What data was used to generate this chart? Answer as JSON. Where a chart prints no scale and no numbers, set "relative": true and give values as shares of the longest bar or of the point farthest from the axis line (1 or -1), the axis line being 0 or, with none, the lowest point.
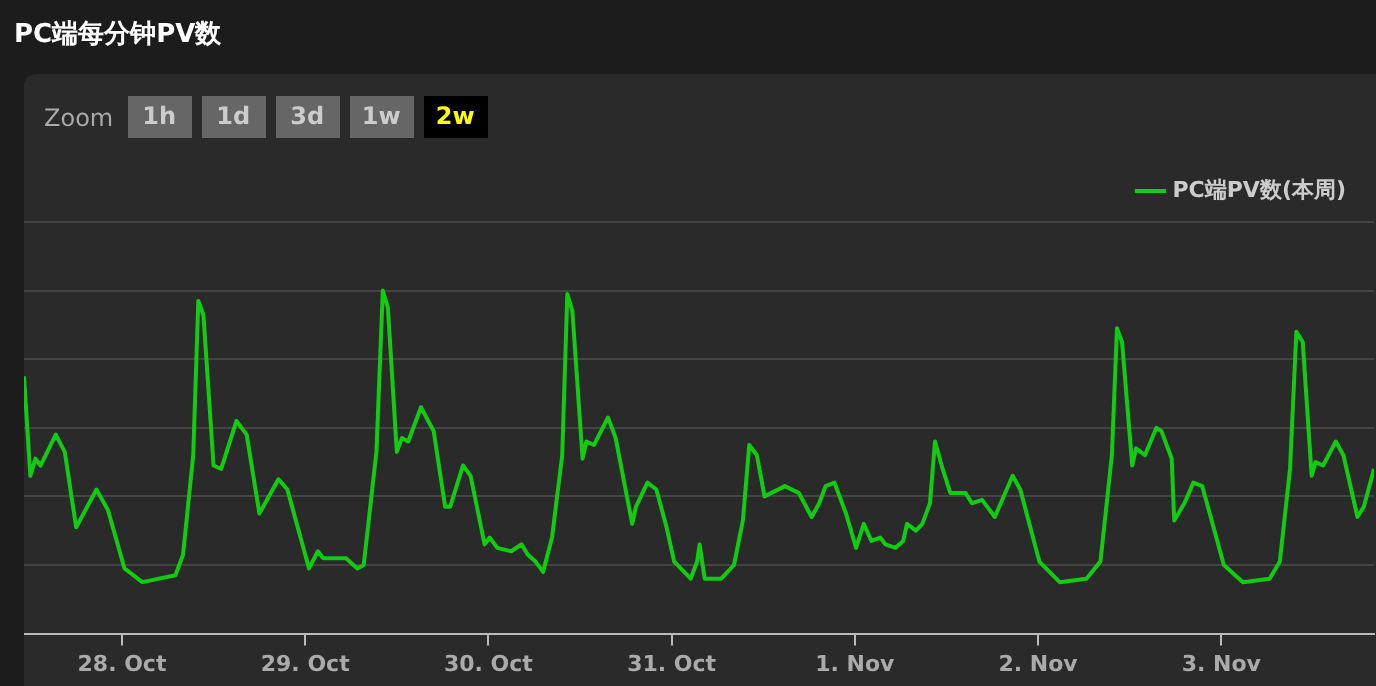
{
  "chart_data": {
    "type": "line",
    "title": "PC端每分钟PV数",
    "relative": true,
    "grid": "y",
    "legend": "top right",
    "marker": "none",
    "annotations": [
      "Zoom",
      "1h",
      "1d",
      "3d",
      "1w",
      "2w"
    ],
    "xlim": [
      "--10-27T11:10",
      "--11-03T20:00"
    ],
    "xticks": [
      {
        "value": "--10-28",
        "label": "28. Oct"
      },
      {
        "value": "--10-29",
        "label": "29. Oct"
      },
      {
        "value": "--10-30",
        "label": "30. Oct"
      },
      {
        "value": "--10-31",
        "label": "31. Oct"
      },
      {
        "value": "--11-01",
        "label": "1. Nov"
      },
      {
        "value": "--11-02",
        "label": "2. Nov"
      },
      {
        "value": "--11-03",
        "label": "3. Nov"
      }
    ],
    "x": [
      "--10-27T11:10",
      "--10-27T12:00",
      "--10-27T12:40",
      "--10-27T13:20",
      "--10-27T15:20",
      "--10-27T16:30",
      "--10-27T18:00",
      "--10-27T20:40",
      "--10-27T22:10",
      "--10-28T00:20",
      "--10-28T02:40",
      "--10-28T07:00",
      "--10-28T08:00",
      "--10-28T09:20",
      "--10-28T10:00",
      "--10-28T10:40",
      "--10-28T12:00",
      "--10-28T13:00",
      "--10-28T15:00",
      "--10-28T16:20",
      "--10-28T18:00",
      "--10-28T20:30",
      "--10-28T21:40",
      "--10-29T00:30",
      "--10-29T01:40",
      "--10-29T02:20",
      "--10-29T05:20",
      "--10-29T06:50",
      "--10-29T07:40",
      "--10-29T09:20",
      "--10-29T10:10",
      "--10-29T10:50",
      "--10-29T12:00",
      "--10-29T12:40",
      "--10-29T13:30",
      "--10-29T15:10",
      "--10-29T16:50",
      "--10-29T18:20",
      "--10-29T19:00",
      "--10-29T20:40",
      "--10-29T21:40",
      "--10-29T23:30",
      "--10-30T00:10",
      "--10-30T01:10",
      "--10-30T03:00",
      "--10-30T04:20",
      "--10-30T05:10",
      "--10-30T06:10",
      "--10-30T07:10",
      "--10-30T08:20",
      "--10-30T09:40",
      "--10-30T10:20",
      "--10-30T11:00",
      "--10-30T12:20",
      "--10-30T12:50",
      "--10-30T13:50",
      "--10-30T15:40",
      "--10-30T16:40",
      "--10-30T18:50",
      "--10-30T19:20",
      "--10-30T20:50",
      "--10-30T22:00",
      "--10-30T23:20",
      "--10-31T00:20",
      "--10-31T02:30",
      "--10-31T03:20",
      "--10-31T03:40",
      "--10-31T04:20",
      "--10-31T06:30",
      "--10-31T08:10",
      "--10-31T09:20",
      "--10-31T10:10",
      "--10-31T11:10",
      "--10-31T12:10",
      "--10-31T14:50",
      "--10-31T16:40",
      "--10-31T18:20",
      "--10-31T19:20",
      "--10-31T20:10",
      "--10-31T21:20",
      "--10-31T22:50",
      "--11-01T00:10",
      "--11-01T01:10",
      "--11-01T02:10",
      "--11-01T03:20",
      "--11-01T04:00",
      "--11-01T05:20",
      "--11-01T06:20",
      "--11-01T06:50",
      "--11-01T08:00",
      "--11-01T08:50",
      "--11-01T09:50",
      "--11-01T10:30",
      "--11-01T11:30",
      "--11-01T12:30",
      "--11-01T14:30",
      "--11-01T15:20",
      "--11-01T16:40",
      "--11-01T18:20",
      "--11-01T20:40",
      "--11-01T21:40",
      "--11-02T00:10",
      "--11-02T02:50",
      "--11-02T06:20",
      "--11-02T08:10",
      "--11-02T09:40",
      "--11-02T10:20",
      "--11-02T11:00",
      "--11-02T12:20",
      "--11-02T12:50",
      "--11-02T14:00",
      "--11-02T15:30",
      "--11-02T16:10",
      "--11-02T17:30",
      "--11-02T17:50",
      "--11-02T19:10",
      "--11-02T20:20",
      "--11-02T21:30",
      "--11-03T00:20",
      "--11-03T02:50",
      "--11-03T06:20",
      "--11-03T07:40",
      "--11-03T09:00",
      "--11-03T09:50",
      "--11-03T10:40",
      "--11-03T11:50",
      "--11-03T12:20",
      "--11-03T13:20",
      "--11-03T15:00",
      "--11-03T16:00",
      "--11-03T17:50",
      "--11-03T18:40",
      "--11-03T20:00"
    ],
    "series": [
      {
        "name": "PC端PV数(本周)",
        "color": "#11cc11",
        "values": [
          0.75,
          0.46,
          0.51,
          0.49,
          0.58,
          0.53,
          0.31,
          0.42,
          0.36,
          0.19,
          0.15,
          0.17,
          0.23,
          0.52,
          0.97,
          0.93,
          0.49,
          0.48,
          0.62,
          0.58,
          0.35,
          0.45,
          0.42,
          0.19,
          0.24,
          0.22,
          0.22,
          0.19,
          0.2,
          0.53,
          1,
          0.95,
          0.53,
          0.57,
          0.56,
          0.66,
          0.59,
          0.37,
          0.37,
          0.49,
          0.46,
          0.26,
          0.28,
          0.25,
          0.24,
          0.26,
          0.23,
          0.21,
          0.18,
          0.28,
          0.52,
          0.99,
          0.94,
          0.51,
          0.56,
          0.55,
          0.63,
          0.57,
          0.32,
          0.37,
          0.44,
          0.42,
          0.31,
          0.21,
          0.16,
          0.21,
          0.26,
          0.16,
          0.16,
          0.2,
          0.33,
          0.55,
          0.52,
          0.4,
          0.43,
          0.41,
          0.34,
          0.38,
          0.43,
          0.44,
          0.35,
          0.25,
          0.32,
          0.27,
          0.28,
          0.26,
          0.25,
          0.27,
          0.32,
          0.3,
          0.32,
          0.38,
          0.56,
          0.48,
          0.41,
          0.41,
          0.38,
          0.39,
          0.34,
          0.46,
          0.42,
          0.21,
          0.15,
          0.16,
          0.21,
          0.52,
          0.89,
          0.85,
          0.49,
          0.54,
          0.52,
          0.6,
          0.59,
          0.51,
          0.33,
          0.38,
          0.44,
          0.43,
          0.2,
          0.15,
          0.16,
          0.21,
          0.48,
          0.88,
          0.85,
          0.46,
          0.5,
          0.49,
          0.56,
          0.52,
          0.34,
          0.37,
          0.48
        ]
      }
    ]
  }
}
